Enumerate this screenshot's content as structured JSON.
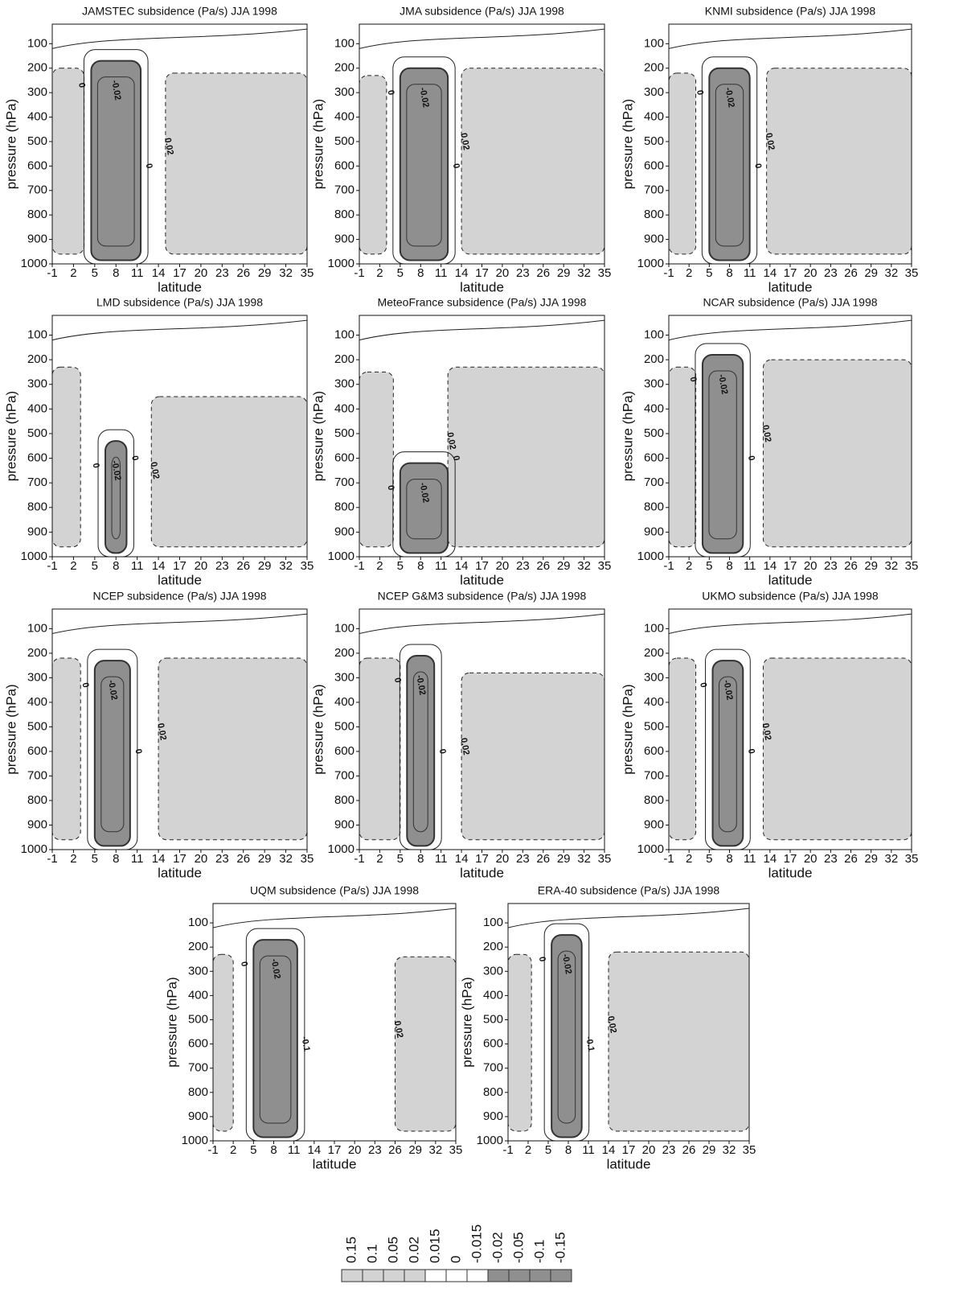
{
  "chart_data": [
    {
      "type": "contour",
      "title": "JAMSTEC subsidence (Pa/s) JJA 1998",
      "xlabel": "latitude",
      "ylabel": "pressure (hPa)",
      "xlim": [
        -1,
        35
      ],
      "xticks": [
        -1,
        2,
        5,
        8,
        11,
        14,
        17,
        20,
        23,
        26,
        29,
        32,
        35
      ],
      "ylim": [
        1000,
        20
      ],
      "yticks": [
        100,
        200,
        300,
        400,
        500,
        600,
        700,
        800,
        900,
        1000
      ],
      "contour_labels": [
        "0",
        "-0.02",
        "0.02",
        "0"
      ]
    },
    {
      "type": "contour",
      "title": "JMA subsidence (Pa/s) JJA 1998",
      "xlabel": "latitude",
      "ylabel": "pressure (hPa)",
      "xlim": [
        -1,
        35
      ],
      "xticks": [
        -1,
        2,
        5,
        8,
        11,
        14,
        17,
        20,
        23,
        26,
        29,
        32,
        35
      ],
      "ylim": [
        1000,
        20
      ],
      "yticks": [
        100,
        200,
        300,
        400,
        500,
        600,
        700,
        800,
        900,
        1000
      ],
      "contour_labels": [
        "0",
        "-0.02",
        "0.02",
        "0"
      ]
    },
    {
      "type": "contour",
      "title": "KNMI subsidence (Pa/s) JJA 1998",
      "xlabel": "latitude",
      "ylabel": "pressure (hPa)",
      "xlim": [
        -1,
        35
      ],
      "xticks": [
        -1,
        2,
        5,
        8,
        11,
        14,
        17,
        20,
        23,
        26,
        29,
        32,
        35
      ],
      "ylim": [
        1000,
        20
      ],
      "yticks": [
        100,
        200,
        300,
        400,
        500,
        600,
        700,
        800,
        900,
        1000
      ],
      "contour_labels": [
        "0",
        "-0.02",
        "0.02",
        "0"
      ]
    },
    {
      "type": "contour",
      "title": "LMD subsidence (Pa/s) JJA 1998",
      "xlabel": "latitude",
      "ylabel": "pressure (hPa)",
      "xlim": [
        -1,
        35
      ],
      "xticks": [
        -1,
        2,
        5,
        8,
        11,
        14,
        17,
        20,
        23,
        26,
        29,
        32,
        35
      ],
      "ylim": [
        1000,
        20
      ],
      "yticks": [
        100,
        200,
        300,
        400,
        500,
        600,
        700,
        800,
        900,
        1000
      ],
      "contour_labels": [
        "0",
        "-0.02",
        "0.02",
        "0"
      ]
    },
    {
      "type": "contour",
      "title": "MeteoFrance subsidence (Pa/s) JJA 1998",
      "xlabel": "latitude",
      "ylabel": "pressure (hPa)",
      "xlim": [
        -1,
        35
      ],
      "xticks": [
        -1,
        2,
        5,
        8,
        11,
        14,
        17,
        20,
        23,
        26,
        29,
        32,
        35
      ],
      "ylim": [
        1000,
        20
      ],
      "yticks": [
        100,
        200,
        300,
        400,
        500,
        600,
        700,
        800,
        900,
        1000
      ],
      "contour_labels": [
        "0",
        "-0.02",
        "0.02",
        "0"
      ]
    },
    {
      "type": "contour",
      "title": "NCAR subsidence (Pa/s) JJA 1998",
      "xlabel": "latitude",
      "ylabel": "pressure (hPa)",
      "xlim": [
        -1,
        35
      ],
      "xticks": [
        -1,
        2,
        5,
        8,
        11,
        14,
        17,
        20,
        23,
        26,
        29,
        32,
        35
      ],
      "ylim": [
        1000,
        20
      ],
      "yticks": [
        100,
        200,
        300,
        400,
        500,
        600,
        700,
        800,
        900,
        1000
      ],
      "contour_labels": [
        "0",
        "-0.02",
        "0.02",
        "0"
      ]
    },
    {
      "type": "contour",
      "title": "NCEP subsidence (Pa/s) JJA 1998",
      "xlabel": "latitude",
      "ylabel": "pressure (hPa)",
      "xlim": [
        -1,
        35
      ],
      "xticks": [
        -1,
        2,
        5,
        8,
        11,
        14,
        17,
        20,
        23,
        26,
        29,
        32,
        35
      ],
      "ylim": [
        1000,
        20
      ],
      "yticks": [
        100,
        200,
        300,
        400,
        500,
        600,
        700,
        800,
        900,
        1000
      ],
      "contour_labels": [
        "0",
        "-0.02",
        "0.02",
        "0"
      ]
    },
    {
      "type": "contour",
      "title": "NCEP G&M3 subsidence (Pa/s) JJA 1998",
      "xlabel": "latitude",
      "ylabel": "pressure (hPa)",
      "xlim": [
        -1,
        35
      ],
      "xticks": [
        -1,
        2,
        5,
        8,
        11,
        14,
        17,
        20,
        23,
        26,
        29,
        32,
        35
      ],
      "ylim": [
        1000,
        20
      ],
      "yticks": [
        100,
        200,
        300,
        400,
        500,
        600,
        700,
        800,
        900,
        1000
      ],
      "contour_labels": [
        "0",
        "-0.02",
        "0.02",
        "0"
      ]
    },
    {
      "type": "contour",
      "title": "UKMO subsidence (Pa/s) JJA 1998",
      "xlabel": "latitude",
      "ylabel": "pressure (hPa)",
      "xlim": [
        -1,
        35
      ],
      "xticks": [
        -1,
        2,
        5,
        8,
        11,
        14,
        17,
        20,
        23,
        26,
        29,
        32,
        35
      ],
      "ylim": [
        1000,
        20
      ],
      "yticks": [
        100,
        200,
        300,
        400,
        500,
        600,
        700,
        800,
        900,
        1000
      ],
      "contour_labels": [
        "0",
        "-0.02",
        "0.02",
        "0"
      ]
    },
    {
      "type": "contour",
      "title": "UQM subsidence (Pa/s) JJA 1998",
      "xlabel": "latitude",
      "ylabel": "pressure (hPa)",
      "xlim": [
        -1,
        35
      ],
      "xticks": [
        -1,
        2,
        5,
        8,
        11,
        14,
        17,
        20,
        23,
        26,
        29,
        32,
        35
      ],
      "ylim": [
        1000,
        20
      ],
      "yticks": [
        100,
        200,
        300,
        400,
        500,
        600,
        700,
        800,
        900,
        1000
      ],
      "contour_labels": [
        "0",
        "-0.02",
        "0.02",
        "-0.1"
      ]
    },
    {
      "type": "contour",
      "title": "ERA-40 subsidence (Pa/s) JJA 1998",
      "xlabel": "latitude",
      "ylabel": "pressure (hPa)",
      "xlim": [
        -1,
        35
      ],
      "xticks": [
        -1,
        2,
        5,
        8,
        11,
        14,
        17,
        20,
        23,
        26,
        29,
        32,
        35
      ],
      "ylim": [
        1000,
        20
      ],
      "yticks": [
        100,
        200,
        300,
        400,
        500,
        600,
        700,
        800,
        900,
        1000
      ],
      "contour_labels": [
        "0",
        "-0.02",
        "0.02",
        "-0.1"
      ]
    },
    {
      "type": "colorbar",
      "values": [
        0.15,
        0.1,
        0.05,
        0.02,
        0.015,
        0,
        -0.015,
        -0.02,
        -0.05,
        -0.1,
        -0.15
      ],
      "colors": [
        "#d3d3d3",
        "#d3d3d3",
        "#d3d3d3",
        "#d3d3d3",
        "#ffffff",
        "#ffffff",
        "#ffffff",
        "#8f8f8f",
        "#8f8f8f",
        "#8f8f8f",
        "#8f8f8f"
      ]
    }
  ]
}
